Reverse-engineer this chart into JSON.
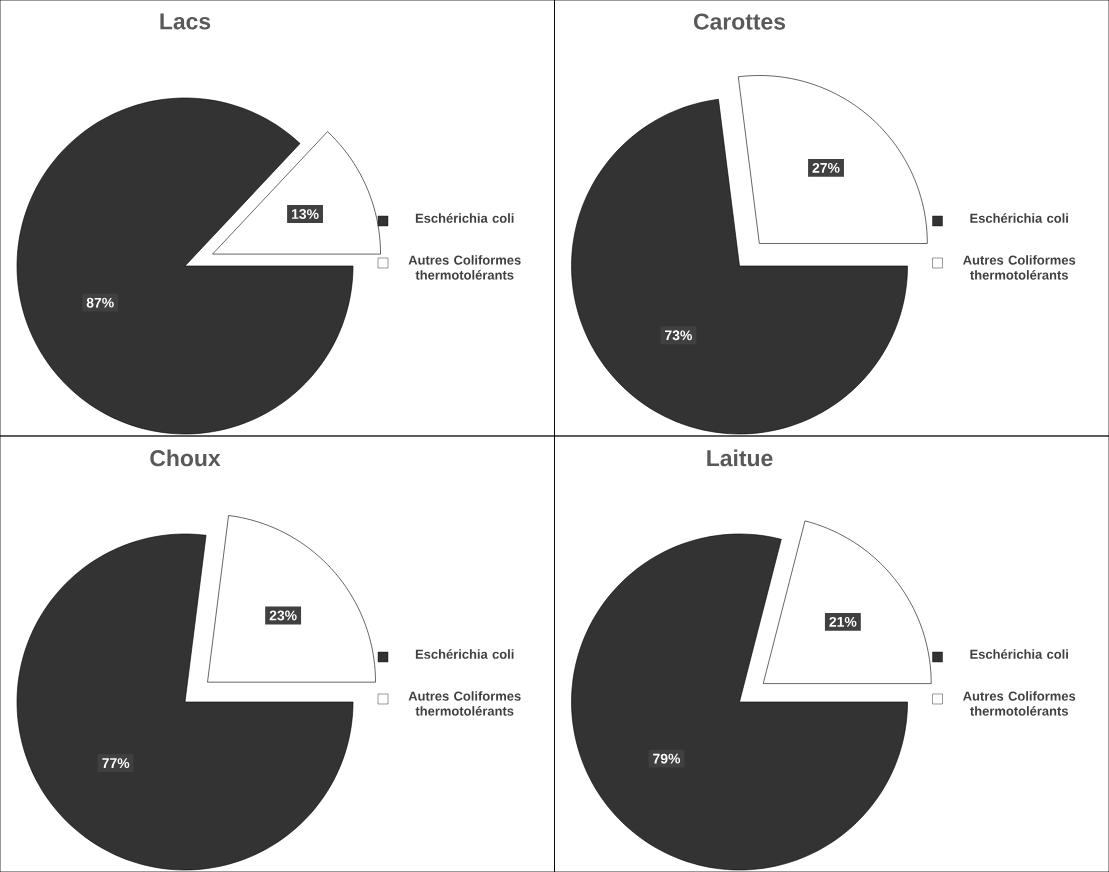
{
  "chart_data": [
    {
      "type": "pie",
      "title": "Lacs",
      "categories": [
        "Eschérichia coli",
        "Autres Coliformes thermotolérants"
      ],
      "values": [
        87,
        13
      ],
      "value_labels": [
        "87%",
        "13%"
      ],
      "colors": [
        "#333333",
        "#ffffff"
      ],
      "legend": "right"
    },
    {
      "type": "pie",
      "title": "Carottes",
      "categories": [
        "Eschérichia coli",
        "Autres Coliformes thermotolérants"
      ],
      "values": [
        73,
        27
      ],
      "value_labels": [
        "73%",
        "27%"
      ],
      "colors": [
        "#333333",
        "#ffffff"
      ],
      "legend": "right"
    },
    {
      "type": "pie",
      "title": "Choux",
      "categories": [
        "Eschérichia coli",
        "Autres Coliformes thermotolérants"
      ],
      "values": [
        77,
        23
      ],
      "value_labels": [
        "77%",
        "23%"
      ],
      "colors": [
        "#333333",
        "#ffffff"
      ],
      "legend": "right"
    },
    {
      "type": "pie",
      "title": "Laitue",
      "categories": [
        "Eschérichia coli",
        "Autres Coliformes thermotolérants"
      ],
      "values": [
        79,
        21
      ],
      "value_labels": [
        "79%",
        "21%"
      ],
      "colors": [
        "#333333",
        "#ffffff"
      ],
      "legend": "right"
    }
  ]
}
